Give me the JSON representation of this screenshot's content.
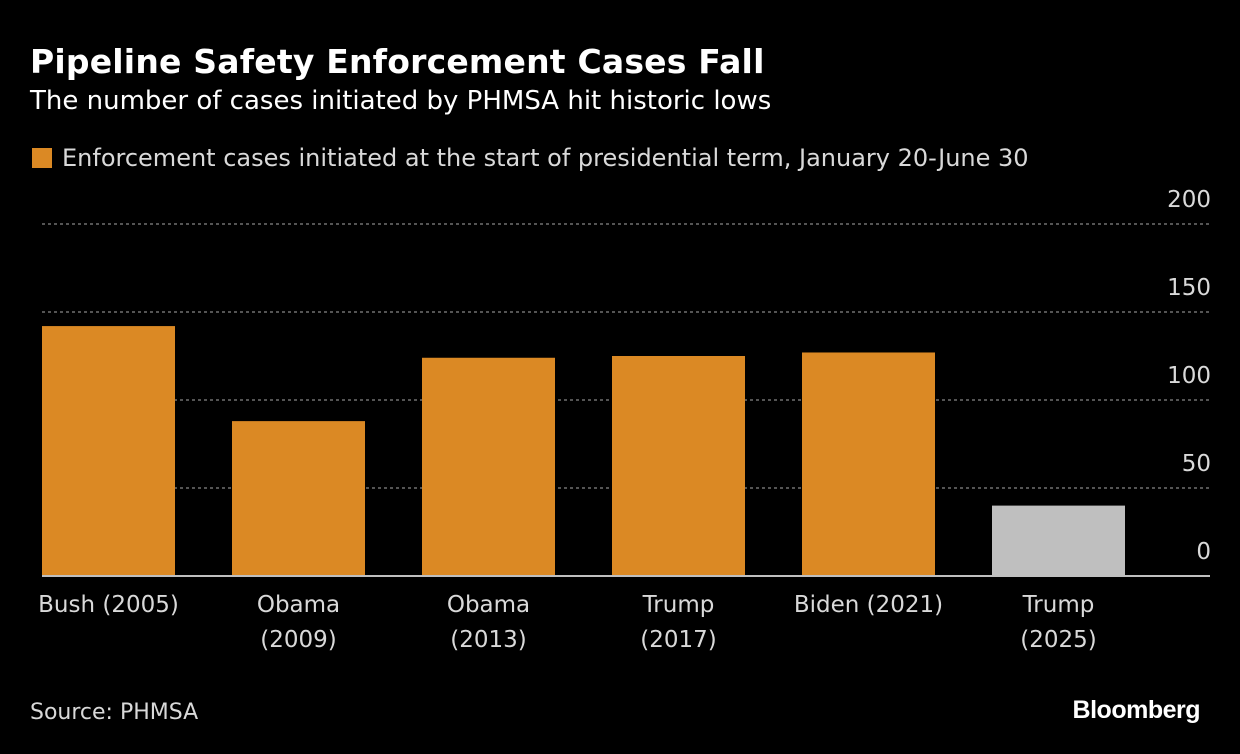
{
  "header": {
    "title": "Pipeline Safety Enforcement Cases Fall",
    "subtitle": "The number of cases initiated by PHMSA hit historic lows"
  },
  "footer": {
    "source": "Source: PHMSA",
    "logo": "Bloomberg"
  },
  "chart_data": {
    "type": "bar",
    "title": "Pipeline Safety Enforcement Cases Fall",
    "subtitle": "The number of cases initiated by PHMSA hit historic lows",
    "legend": [
      {
        "name": "Enforcement cases initiated at the start of presidential term, January 20-June 30",
        "color": "#db8924"
      }
    ],
    "legend_placement": "top-left",
    "categories": [
      [
        "Bush (2005)"
      ],
      [
        "Obama",
        "(2009)"
      ],
      [
        "Obama",
        "(2013)"
      ],
      [
        "Trump",
        "(2017)"
      ],
      [
        "Biden (2021)"
      ],
      [
        "Trump",
        "(2025)"
      ]
    ],
    "series": [
      {
        "name": "Enforcement cases initiated at the start of presidential term, January 20-June 30",
        "values": [
          142,
          88,
          124,
          125,
          127,
          40
        ]
      }
    ],
    "bar_colors": [
      "#db8924",
      "#db8924",
      "#db8924",
      "#db8924",
      "#db8924",
      "#bfbfbf"
    ],
    "ylim": [
      0,
      200
    ],
    "yticks": [
      0,
      50,
      100,
      150,
      200
    ],
    "y_axis_side": "right",
    "grid": true,
    "xlabel": "",
    "ylabel": ""
  }
}
